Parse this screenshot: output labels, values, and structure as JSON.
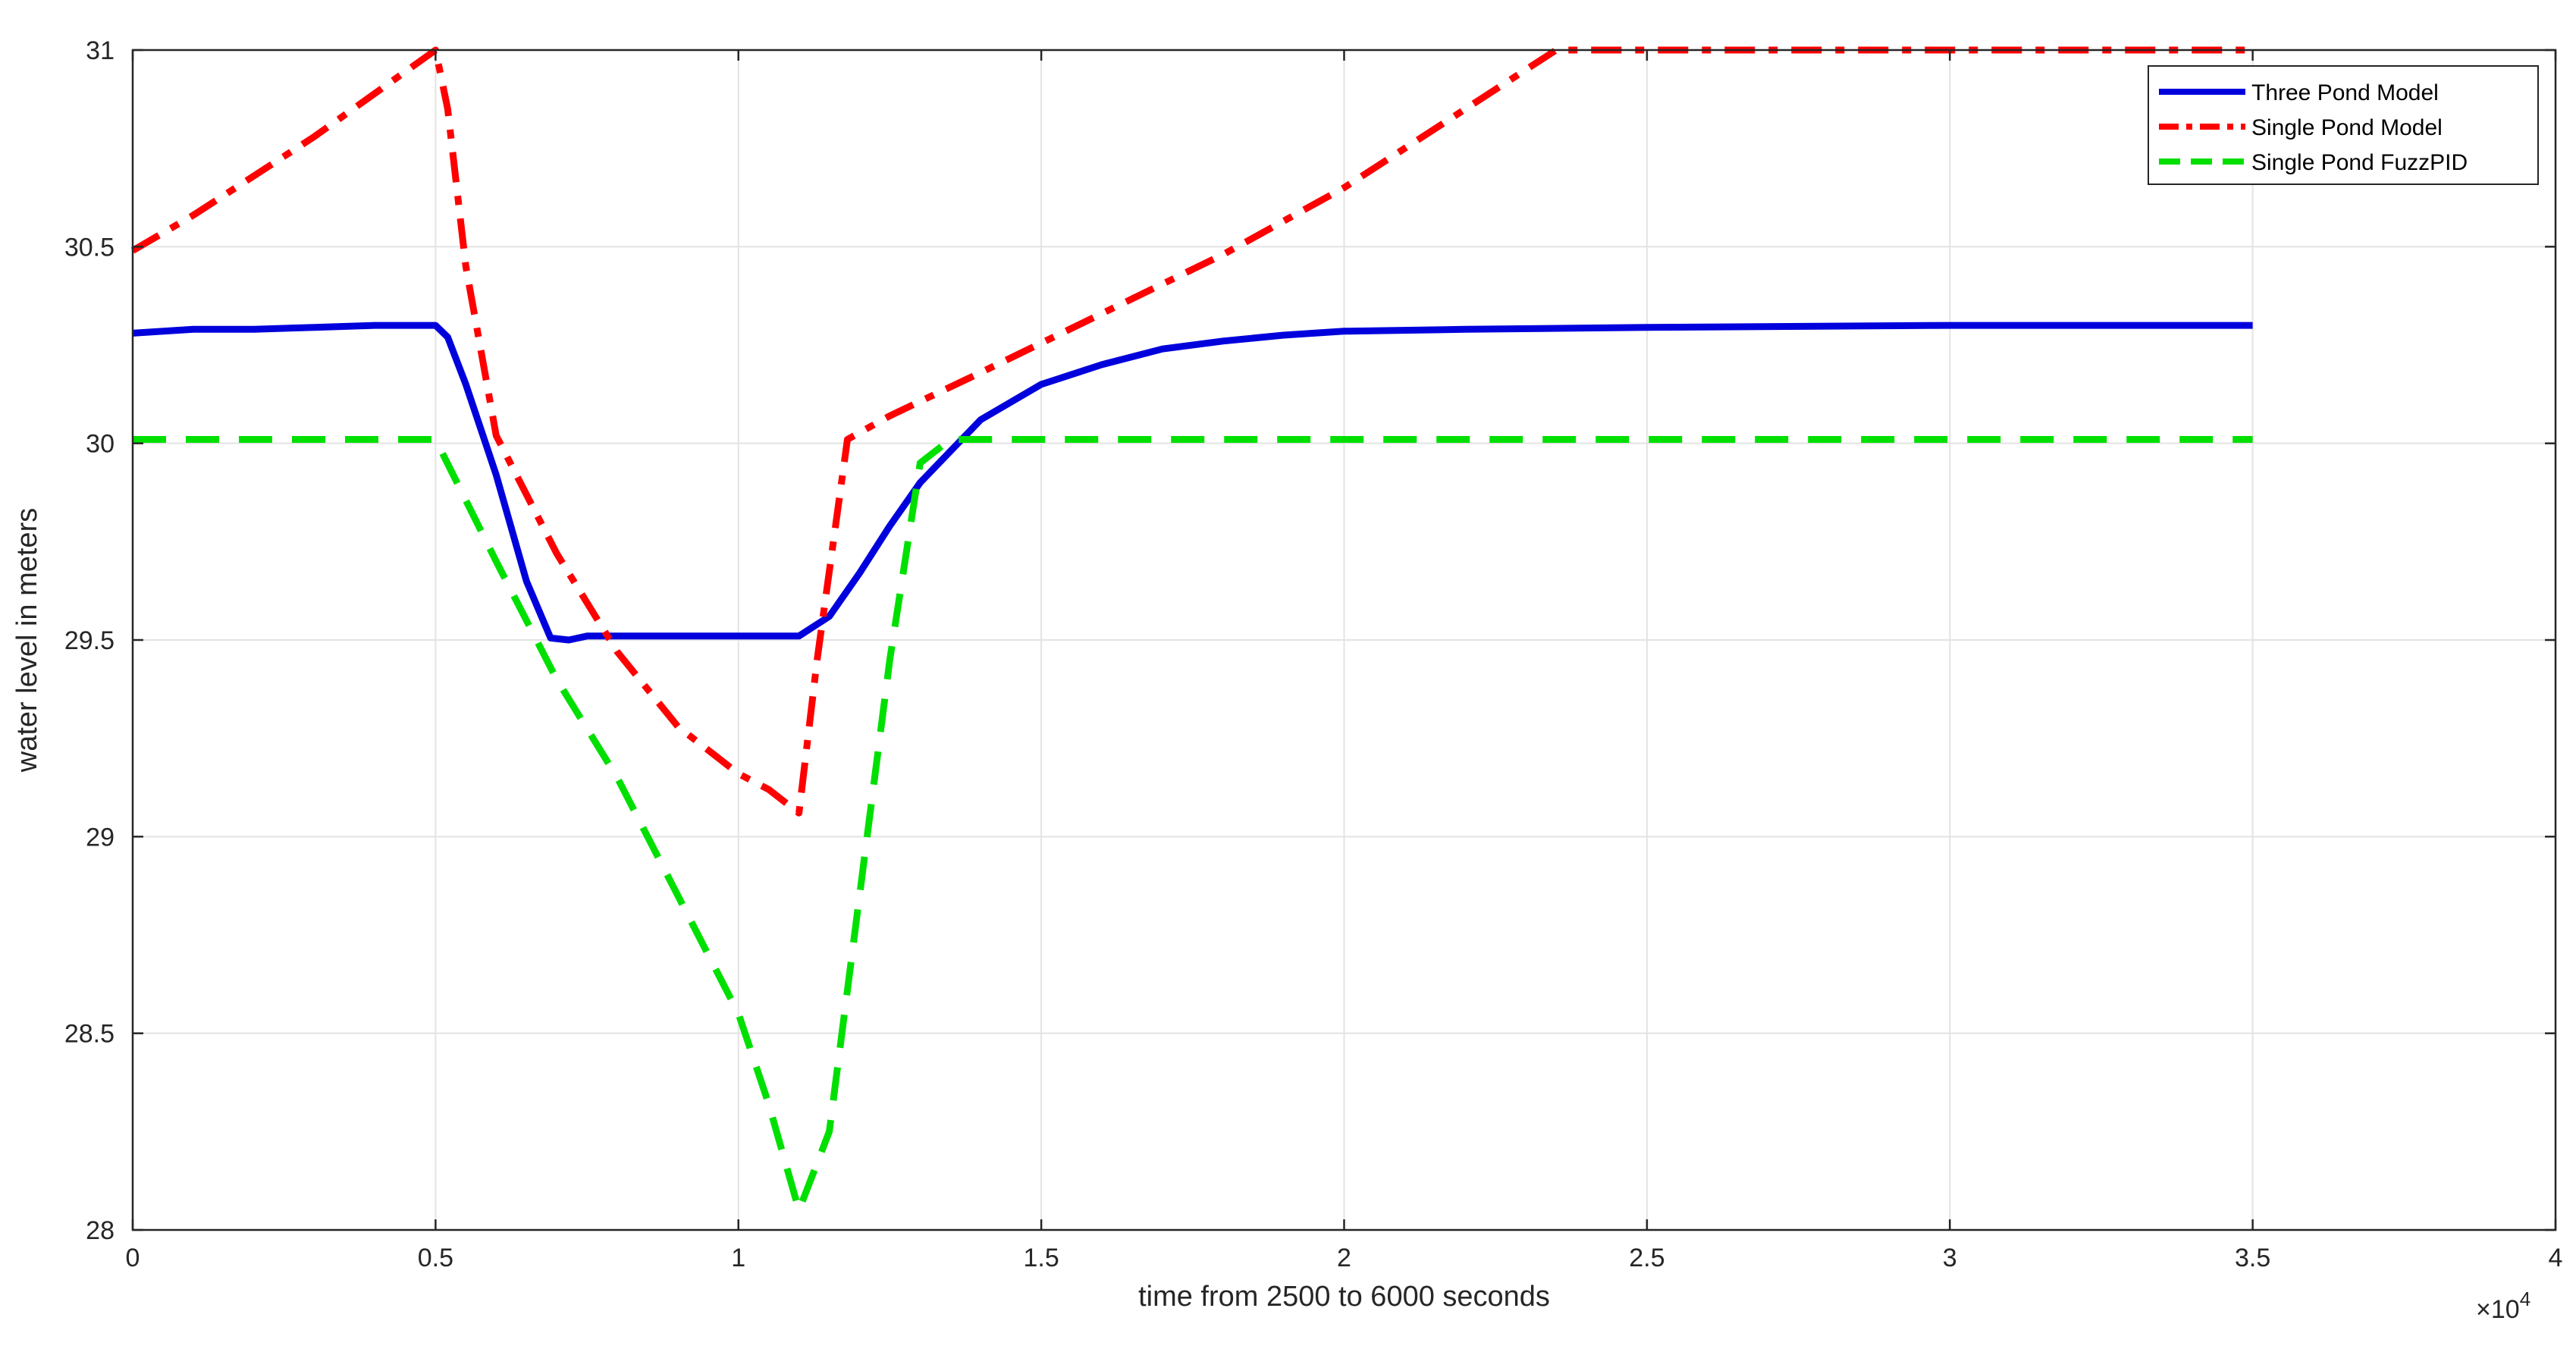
{
  "chart_data": {
    "type": "line",
    "xlabel": "time from 2500 to 6000 seconds",
    "ylabel": "water level in meters",
    "x_exponent_label": "×10",
    "x_exponent_power": "4",
    "xlim": [
      0,
      40000
    ],
    "ylim": [
      28,
      31
    ],
    "grid": true,
    "legend_position": "top-right",
    "x_tick_values": [
      0,
      5000,
      10000,
      15000,
      20000,
      25000,
      30000,
      35000,
      40000
    ],
    "x_tick_labels": [
      "0",
      "0.5",
      "1",
      "1.5",
      "2",
      "2.5",
      "3",
      "3.5",
      "4"
    ],
    "y_tick_values": [
      28,
      28.5,
      29,
      29.5,
      30,
      30.5,
      31
    ],
    "y_tick_labels": [
      "28",
      "28.5",
      "29",
      "29.5",
      "30",
      "30.5",
      "31"
    ],
    "series": [
      {
        "name": "Three Pond Model",
        "color": "#0000dd",
        "style": "solid",
        "x": [
          0,
          1000,
          2000,
          3000,
          4000,
          4500,
          5000,
          5200,
          5500,
          6000,
          6500,
          6900,
          7200,
          7500,
          8000,
          9000,
          10000,
          10700,
          11000,
          11500,
          12000,
          12500,
          13000,
          14000,
          15000,
          16000,
          17000,
          18000,
          19000,
          20000,
          22000,
          25000,
          30000,
          35000
        ],
        "y": [
          30.28,
          30.29,
          30.29,
          30.295,
          30.3,
          30.3,
          30.3,
          30.27,
          30.15,
          29.92,
          29.65,
          29.505,
          29.5,
          29.51,
          29.51,
          29.51,
          29.51,
          29.51,
          29.51,
          29.56,
          29.67,
          29.79,
          29.9,
          30.06,
          30.15,
          30.2,
          30.24,
          30.26,
          30.275,
          30.285,
          30.29,
          30.295,
          30.3,
          30.3
        ]
      },
      {
        "name": "Single Pond Model",
        "color": "#ff0000",
        "style": "dashdot",
        "x": [
          0,
          1000,
          2000,
          3000,
          4000,
          5000,
          5200,
          5500,
          6000,
          7000,
          8000,
          9000,
          10000,
          10500,
          11000,
          11300,
          11800,
          12500,
          14000,
          16000,
          18000,
          20000,
          22000,
          23500,
          25000,
          30000,
          35000
        ],
        "y": [
          30.49,
          30.58,
          30.68,
          30.78,
          30.89,
          31.0,
          30.85,
          30.45,
          30.02,
          29.72,
          29.47,
          29.28,
          29.16,
          29.12,
          29.06,
          29.45,
          30.01,
          30.07,
          30.18,
          30.33,
          30.48,
          30.65,
          30.85,
          31.0,
          31.0,
          31.0,
          31.0
        ]
      },
      {
        "name": "Single Pond FuzzPID",
        "color": "#00e000",
        "style": "dashed",
        "x": [
          0,
          2000,
          4000,
          5000,
          6000,
          7000,
          8000,
          9000,
          10000,
          10500,
          11000,
          11500,
          12000,
          12500,
          13000,
          13500,
          15000,
          20000,
          25000,
          30000,
          35000
        ],
        "y": [
          30.01,
          30.01,
          30.01,
          30.01,
          29.7,
          29.4,
          29.15,
          28.85,
          28.55,
          28.32,
          28.05,
          28.25,
          28.85,
          29.45,
          29.95,
          30.01,
          30.01,
          30.01,
          30.01,
          30.01,
          30.01
        ]
      }
    ]
  }
}
